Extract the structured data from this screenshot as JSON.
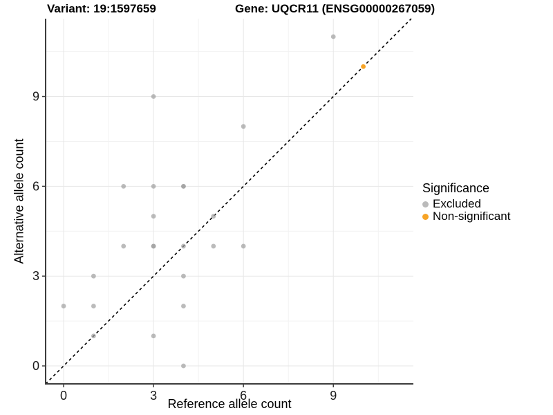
{
  "header": {
    "variant_title": "Variant: 19:1597659",
    "gene_title": "Gene: UQCR11 (ENSG00000267059)"
  },
  "chart_data": {
    "type": "scatter",
    "xlabel": "Reference allele count",
    "ylabel": "Alternative allele count",
    "x_ticks": [
      0,
      3,
      6,
      9
    ],
    "y_ticks": [
      0,
      3,
      6,
      9
    ],
    "minor_ticks": [
      1.5,
      4.5,
      7.5,
      10.5
    ],
    "xlim": [
      -0.6,
      11.67
    ],
    "ylim": [
      -0.6,
      11.6
    ],
    "grid": "major+minor",
    "legend": {
      "title": "Significance",
      "position": "right"
    },
    "identity_line": {
      "style": "dashed",
      "from": [
        -0.6,
        -0.6
      ],
      "to": [
        11.6,
        11.6
      ],
      "color": "#000000"
    },
    "series": [
      {
        "name": "Excluded",
        "color": "#9e9e9e",
        "opacity": 0.7,
        "points": [
          [
            0,
            2
          ],
          [
            1,
            1
          ],
          [
            1,
            2
          ],
          [
            1,
            3
          ],
          [
            2,
            4
          ],
          [
            2,
            6
          ],
          [
            3,
            1
          ],
          [
            3,
            4
          ],
          [
            3,
            4
          ],
          [
            3,
            5
          ],
          [
            3,
            6
          ],
          [
            3,
            9
          ],
          [
            4,
            0
          ],
          [
            4,
            2
          ],
          [
            4,
            3
          ],
          [
            4,
            4
          ],
          [
            4,
            6
          ],
          [
            4,
            6
          ],
          [
            5,
            4
          ],
          [
            5,
            5
          ],
          [
            6,
            4
          ],
          [
            6,
            8
          ],
          [
            9,
            11
          ]
        ]
      },
      {
        "name": "Non-significant",
        "color": "#F7A426",
        "opacity": 1,
        "points": [
          [
            10,
            10
          ]
        ]
      }
    ],
    "colors": {
      "grid_major": "#e7e7e7",
      "grid_minor": "#f2f2f2",
      "axis_line": "#3c3c3c",
      "tick_label": "#1a1a1a"
    }
  }
}
